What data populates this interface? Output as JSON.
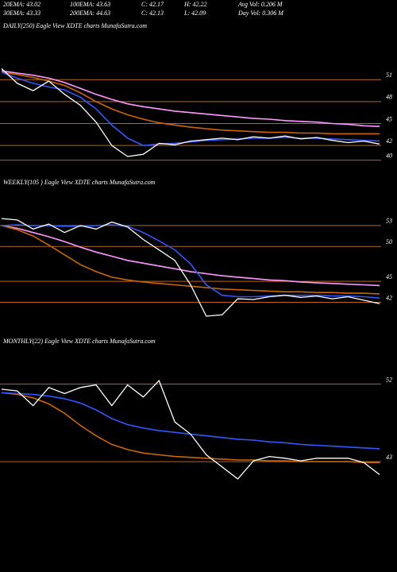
{
  "header": {
    "rows": [
      [
        "20EMA: 43.02",
        "100EMA: 43.63",
        "C: 42.17",
        "H: 42.22",
        "Avg Vol: 0.206  M"
      ],
      [
        "30EMA: 43.33",
        "200EMA: 44.63",
        "C: 42.13",
        "L: 42.09",
        "Day Vol: 0.306  M"
      ]
    ]
  },
  "chart_data": [
    {
      "type": "line",
      "title": "DAILY(250) Eagle View XDTE charts MunafaSutra.com",
      "x": [
        0,
        20,
        40,
        60,
        80,
        100,
        120,
        140,
        160,
        180,
        200,
        220,
        240,
        260,
        280,
        300,
        320,
        340,
        360,
        380,
        400,
        420,
        440,
        460,
        480
      ],
      "xlim": [
        0,
        480
      ],
      "ylim": [
        38,
        57
      ],
      "yticks": [
        51,
        48,
        45,
        42,
        40
      ],
      "grid": true,
      "series": [
        {
          "color": "#ff99ff",
          "values": [
            52.2,
            51.9,
            51.6,
            51.2,
            50.6,
            49.8,
            49.0,
            48.3,
            47.7,
            47.3,
            47.0,
            46.7,
            46.5,
            46.3,
            46.1,
            45.9,
            45.7,
            45.6,
            45.4,
            45.3,
            45.2,
            45.0,
            44.9,
            44.7,
            44.6
          ]
        },
        {
          "color": "#cc6600",
          "values": [
            52.0,
            51.7,
            51.3,
            50.8,
            50.2,
            49.2,
            48.0,
            47.0,
            46.2,
            45.6,
            45.1,
            44.8,
            44.5,
            44.3,
            44.1,
            44.0,
            43.9,
            43.8,
            43.8,
            43.7,
            43.7,
            43.6,
            43.6,
            43.6,
            43.6
          ]
        },
        {
          "color": "#3355ff",
          "values": [
            52.0,
            51.2,
            50.5,
            50.0,
            49.6,
            48.6,
            47.0,
            44.8,
            43.0,
            42.0,
            42.2,
            42.3,
            42.5,
            42.7,
            42.8,
            42.9,
            43.0,
            43.0,
            43.1,
            43.0,
            43.0,
            42.9,
            42.8,
            42.7,
            42.6
          ]
        },
        {
          "color": "#ffffff",
          "values": [
            52.5,
            50.5,
            49.5,
            50.8,
            49.0,
            47.5,
            45.2,
            42.0,
            40.5,
            40.8,
            42.3,
            42.1,
            42.6,
            42.8,
            43.0,
            42.8,
            43.2,
            43.0,
            43.3,
            42.9,
            43.1,
            42.7,
            42.4,
            42.6,
            42.2
          ]
        }
      ]
    },
    {
      "type": "line",
      "title": "WEEKLY(105                ) Eagle View XDTE charts MunafaSutra.com",
      "x": [
        0,
        20,
        40,
        60,
        80,
        100,
        120,
        140,
        160,
        180,
        200,
        220,
        240,
        260,
        280,
        300,
        320,
        340,
        360,
        380,
        400,
        420,
        440,
        460,
        480
      ],
      "xlim": [
        0,
        480
      ],
      "ylim": [
        37.5,
        58
      ],
      "yticks": [
        53,
        50,
        45,
        42
      ],
      "grid": true,
      "series": [
        {
          "color": "#ff99ff",
          "values": [
            53.0,
            52.6,
            52.0,
            51.4,
            50.7,
            49.9,
            49.2,
            48.6,
            48.0,
            47.6,
            47.2,
            46.8,
            46.4,
            46.1,
            45.8,
            45.6,
            45.4,
            45.2,
            45.1,
            44.9,
            44.8,
            44.7,
            44.6,
            44.5,
            44.4
          ]
        },
        {
          "color": "#cc6600",
          "values": [
            53.0,
            52.4,
            51.5,
            50.2,
            48.8,
            47.4,
            46.4,
            45.6,
            45.2,
            44.9,
            44.7,
            44.5,
            44.3,
            44.1,
            43.9,
            43.8,
            43.7,
            43.6,
            43.5,
            43.5,
            43.4,
            43.4,
            43.3,
            43.3,
            43.2
          ]
        },
        {
          "color": "#3355ff",
          "values": [
            53.0,
            53.1,
            53.0,
            53.0,
            52.9,
            52.9,
            53.0,
            53.1,
            52.9,
            52.0,
            50.8,
            49.5,
            47.5,
            44.5,
            43.0,
            42.8,
            42.8,
            42.9,
            43.0,
            43.0,
            43.0,
            42.9,
            42.9,
            42.8,
            42.6
          ]
        },
        {
          "color": "#ffffff",
          "values": [
            54.0,
            53.8,
            52.5,
            53.2,
            52.0,
            53.0,
            52.5,
            53.5,
            52.8,
            51.0,
            49.5,
            48.0,
            44.5,
            40.0,
            40.2,
            42.5,
            42.4,
            42.8,
            43.0,
            42.7,
            42.9,
            42.5,
            42.8,
            42.3,
            41.8
          ]
        }
      ]
    },
    {
      "type": "line",
      "title": "MONTHLY(22) Eagle View XDTE charts MunafaSutra.com",
      "x": [
        0,
        20,
        40,
        60,
        80,
        100,
        120,
        140,
        160,
        180,
        200,
        220,
        240,
        260,
        280,
        300,
        320,
        340,
        360,
        380,
        400,
        420,
        440,
        460,
        480
      ],
      "xlim": [
        0,
        480
      ],
      "ylim": [
        38.5,
        56
      ],
      "yticks": [
        52,
        43
      ],
      "grid": true,
      "series": [
        {
          "color": "#cc6600",
          "values": [
            51.0,
            50.8,
            50.4,
            49.7,
            48.6,
            47.2,
            46.0,
            45.0,
            44.4,
            44.0,
            43.8,
            43.6,
            43.5,
            43.4,
            43.3,
            43.2,
            43.2,
            43.1,
            43.1,
            43.0,
            43.0,
            43.0,
            43.0,
            42.9,
            42.9
          ]
        },
        {
          "color": "#3355ff",
          "values": [
            51.0,
            50.9,
            50.8,
            50.6,
            50.3,
            49.8,
            49.0,
            48.0,
            47.3,
            46.9,
            46.6,
            46.4,
            46.2,
            46.0,
            45.8,
            45.6,
            45.5,
            45.3,
            45.2,
            45.0,
            44.9,
            44.8,
            44.7,
            44.6,
            44.5
          ]
        },
        {
          "color": "#ffffff",
          "values": [
            51.4,
            51.2,
            49.5,
            51.6,
            50.9,
            51.6,
            51.9,
            49.5,
            51.9,
            50.5,
            52.4,
            47.6,
            46.2,
            43.8,
            42.4,
            41.0,
            43.1,
            43.6,
            43.4,
            43.1,
            43.4,
            43.4,
            43.4,
            42.9,
            41.5
          ]
        }
      ]
    }
  ]
}
